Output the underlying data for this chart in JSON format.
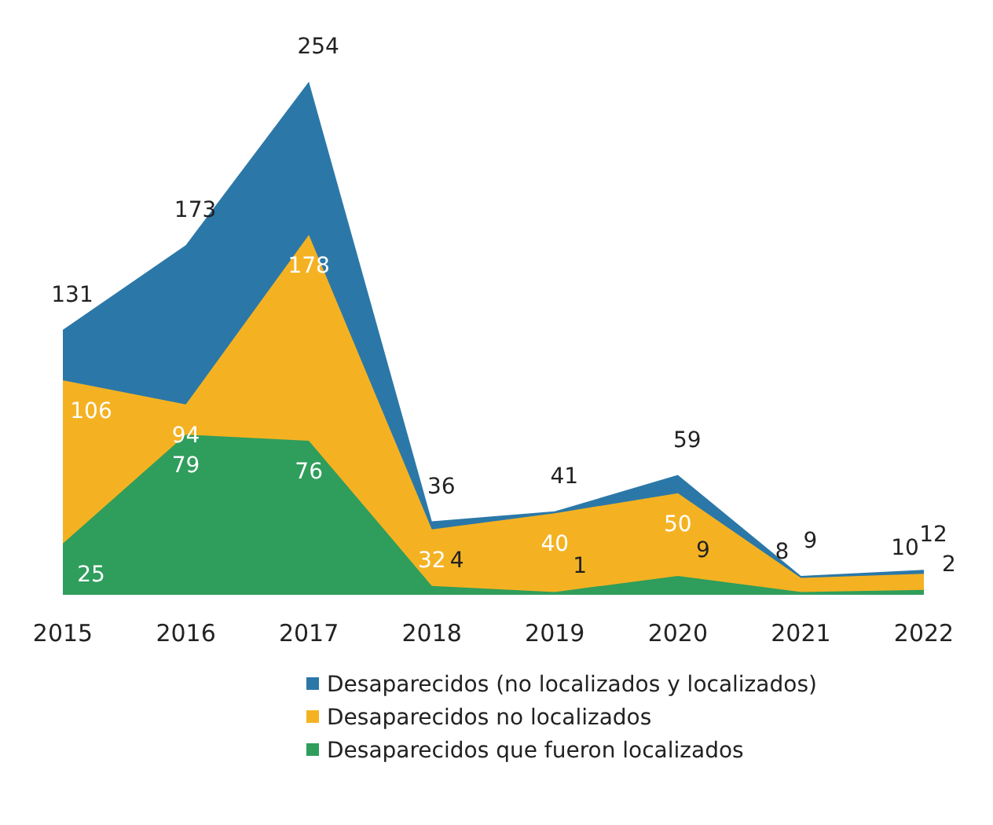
{
  "chart_data": {
    "type": "area",
    "categories": [
      "2015",
      "2016",
      "2017",
      "2018",
      "2019",
      "2020",
      "2021",
      "2022"
    ],
    "legend": "bottom",
    "series": [
      {
        "name": "Desaparecidos (no localizados y localizados)",
        "color": "#2b78a8",
        "values": [
          131,
          173,
          254,
          36,
          41,
          59,
          9,
          12
        ],
        "value_labels": [
          "131",
          "173",
          "254",
          "36",
          "41",
          "59",
          "9",
          "12"
        ]
      },
      {
        "name": "Desaparecidos no localizados",
        "color": "#f4b223",
        "values": [
          106,
          94,
          178,
          32,
          40,
          50,
          8,
          10
        ],
        "value_labels": [
          "106",
          "94",
          "178",
          "32",
          "40",
          "50",
          "8",
          "10"
        ]
      },
      {
        "name": "Desaparecidos que fueron localizados",
        "color": "#2f9d5b",
        "values": [
          25,
          79,
          76,
          4,
          1,
          9,
          1,
          2
        ],
        "value_labels": [
          "25",
          "79",
          "76",
          "4",
          "1",
          "9",
          null,
          "2"
        ]
      }
    ]
  }
}
